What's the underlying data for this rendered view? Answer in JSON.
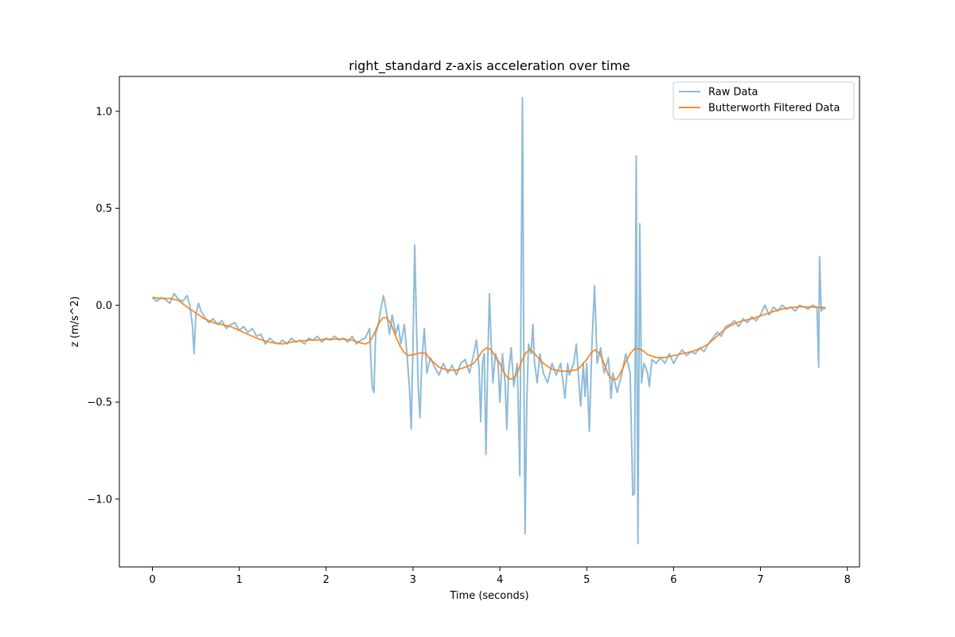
{
  "chart_data": {
    "type": "line",
    "title": "right_standard z-axis acceleration over time",
    "xlabel": "Time (seconds)",
    "ylabel": "z (m/s^2)",
    "xlim": [
      -0.38,
      8.14
    ],
    "ylim": [
      -1.35,
      1.18
    ],
    "xticks": [
      0,
      1,
      2,
      3,
      4,
      5,
      6,
      7,
      8
    ],
    "xtick_labels": [
      "0",
      "1",
      "2",
      "3",
      "4",
      "5",
      "6",
      "7",
      "8"
    ],
    "yticks": [
      -1.0,
      -0.5,
      0.0,
      0.5,
      1.0
    ],
    "ytick_labels": [
      "−1.0",
      "−0.5",
      "0.0",
      "0.5",
      "1.0"
    ],
    "grid": false,
    "legend_position": "top-right",
    "series": [
      {
        "name": "Raw Data",
        "color": "#1f77b4",
        "opacity": 0.5,
        "points": [
          [
            0.0,
            0.04
          ],
          [
            0.05,
            0.02
          ],
          [
            0.1,
            0.04
          ],
          [
            0.15,
            0.03
          ],
          [
            0.2,
            0.01
          ],
          [
            0.25,
            0.06
          ],
          [
            0.3,
            0.03
          ],
          [
            0.35,
            0.02
          ],
          [
            0.4,
            0.05
          ],
          [
            0.43,
            0.0
          ],
          [
            0.46,
            -0.1
          ],
          [
            0.48,
            -0.25
          ],
          [
            0.5,
            -0.05
          ],
          [
            0.53,
            0.01
          ],
          [
            0.56,
            -0.03
          ],
          [
            0.6,
            -0.06
          ],
          [
            0.65,
            -0.09
          ],
          [
            0.7,
            -0.07
          ],
          [
            0.75,
            -0.1
          ],
          [
            0.8,
            -0.08
          ],
          [
            0.85,
            -0.12
          ],
          [
            0.9,
            -0.1
          ],
          [
            0.95,
            -0.09
          ],
          [
            1.0,
            -0.13
          ],
          [
            1.05,
            -0.11
          ],
          [
            1.1,
            -0.14
          ],
          [
            1.15,
            -0.12
          ],
          [
            1.2,
            -0.16
          ],
          [
            1.25,
            -0.15
          ],
          [
            1.3,
            -0.2
          ],
          [
            1.35,
            -0.17
          ],
          [
            1.4,
            -0.19
          ],
          [
            1.45,
            -0.2
          ],
          [
            1.5,
            -0.18
          ],
          [
            1.55,
            -0.2
          ],
          [
            1.6,
            -0.17
          ],
          [
            1.65,
            -0.19
          ],
          [
            1.7,
            -0.18
          ],
          [
            1.75,
            -0.2
          ],
          [
            1.8,
            -0.17
          ],
          [
            1.85,
            -0.18
          ],
          [
            1.9,
            -0.16
          ],
          [
            1.95,
            -0.19
          ],
          [
            2.0,
            -0.17
          ],
          [
            2.05,
            -0.18
          ],
          [
            2.1,
            -0.16
          ],
          [
            2.15,
            -0.18
          ],
          [
            2.2,
            -0.17
          ],
          [
            2.25,
            -0.19
          ],
          [
            2.3,
            -0.16
          ],
          [
            2.35,
            -0.2
          ],
          [
            2.4,
            -0.18
          ],
          [
            2.45,
            -0.17
          ],
          [
            2.5,
            -0.12
          ],
          [
            2.53,
            -0.42
          ],
          [
            2.55,
            -0.45
          ],
          [
            2.57,
            -0.15
          ],
          [
            2.6,
            -0.1
          ],
          [
            2.63,
            -0.02
          ],
          [
            2.66,
            0.05
          ],
          [
            2.7,
            -0.05
          ],
          [
            2.73,
            -0.15
          ],
          [
            2.76,
            -0.05
          ],
          [
            2.8,
            -0.15
          ],
          [
            2.83,
            -0.1
          ],
          [
            2.86,
            -0.2
          ],
          [
            2.9,
            -0.1
          ],
          [
            2.93,
            -0.25
          ],
          [
            2.96,
            -0.43
          ],
          [
            2.98,
            -0.64
          ],
          [
            3.0,
            -0.2
          ],
          [
            3.02,
            0.31
          ],
          [
            3.04,
            -0.1
          ],
          [
            3.06,
            -0.42
          ],
          [
            3.08,
            -0.58
          ],
          [
            3.1,
            -0.3
          ],
          [
            3.13,
            -0.12
          ],
          [
            3.16,
            -0.35
          ],
          [
            3.2,
            -0.27
          ],
          [
            3.25,
            -0.32
          ],
          [
            3.3,
            -0.36
          ],
          [
            3.35,
            -0.3
          ],
          [
            3.4,
            -0.35
          ],
          [
            3.45,
            -0.31
          ],
          [
            3.5,
            -0.36
          ],
          [
            3.55,
            -0.3
          ],
          [
            3.6,
            -0.28
          ],
          [
            3.65,
            -0.35
          ],
          [
            3.7,
            -0.25
          ],
          [
            3.73,
            -0.18
          ],
          [
            3.76,
            -0.32
          ],
          [
            3.78,
            -0.6
          ],
          [
            3.8,
            -0.3
          ],
          [
            3.82,
            -0.25
          ],
          [
            3.84,
            -0.77
          ],
          [
            3.86,
            -0.3
          ],
          [
            3.88,
            0.06
          ],
          [
            3.9,
            -0.2
          ],
          [
            3.92,
            -0.4
          ],
          [
            3.95,
            -0.25
          ],
          [
            3.98,
            -0.3
          ],
          [
            4.0,
            -0.5
          ],
          [
            4.03,
            -0.25
          ],
          [
            4.06,
            -0.4
          ],
          [
            4.08,
            -0.64
          ],
          [
            4.1,
            -0.35
          ],
          [
            4.13,
            -0.22
          ],
          [
            4.16,
            -0.42
          ],
          [
            4.2,
            -0.3
          ],
          [
            4.23,
            -0.88
          ],
          [
            4.26,
            1.07
          ],
          [
            4.28,
            -0.6
          ],
          [
            4.29,
            -1.18
          ],
          [
            4.31,
            -0.5
          ],
          [
            4.33,
            -0.2
          ],
          [
            4.36,
            -0.25
          ],
          [
            4.38,
            -0.1
          ],
          [
            4.4,
            -0.3
          ],
          [
            4.43,
            -0.4
          ],
          [
            4.46,
            -0.25
          ],
          [
            4.5,
            -0.35
          ],
          [
            4.55,
            -0.4
          ],
          [
            4.6,
            -0.3
          ],
          [
            4.65,
            -0.36
          ],
          [
            4.7,
            -0.3
          ],
          [
            4.75,
            -0.48
          ],
          [
            4.78,
            -0.3
          ],
          [
            4.8,
            -0.36
          ],
          [
            4.85,
            -0.3
          ],
          [
            4.88,
            -0.2
          ],
          [
            4.91,
            -0.4
          ],
          [
            4.93,
            -0.52
          ],
          [
            4.96,
            -0.3
          ],
          [
            4.98,
            -0.47
          ],
          [
            5.0,
            -0.3
          ],
          [
            5.03,
            -0.65
          ],
          [
            5.06,
            -0.2
          ],
          [
            5.09,
            0.1
          ],
          [
            5.12,
            -0.3
          ],
          [
            5.16,
            -0.22
          ],
          [
            5.2,
            -0.35
          ],
          [
            5.25,
            -0.27
          ],
          [
            5.28,
            -0.48
          ],
          [
            5.3,
            -0.35
          ],
          [
            5.35,
            -0.45
          ],
          [
            5.4,
            -0.36
          ],
          [
            5.45,
            -0.25
          ],
          [
            5.5,
            -0.35
          ],
          [
            5.53,
            -0.98
          ],
          [
            5.55,
            -0.97
          ],
          [
            5.57,
            0.77
          ],
          [
            5.58,
            -0.4
          ],
          [
            5.59,
            -1.23
          ],
          [
            5.61,
            0.42
          ],
          [
            5.63,
            -0.4
          ],
          [
            5.66,
            -0.3
          ],
          [
            5.7,
            -0.35
          ],
          [
            5.72,
            -0.42
          ],
          [
            5.75,
            -0.28
          ],
          [
            5.8,
            -0.3
          ],
          [
            5.85,
            -0.27
          ],
          [
            5.9,
            -0.3
          ],
          [
            5.95,
            -0.25
          ],
          [
            6.0,
            -0.3
          ],
          [
            6.05,
            -0.26
          ],
          [
            6.1,
            -0.23
          ],
          [
            6.15,
            -0.26
          ],
          [
            6.2,
            -0.24
          ],
          [
            6.25,
            -0.25
          ],
          [
            6.3,
            -0.22
          ],
          [
            6.35,
            -0.24
          ],
          [
            6.4,
            -0.2
          ],
          [
            6.45,
            -0.17
          ],
          [
            6.5,
            -0.14
          ],
          [
            6.55,
            -0.16
          ],
          [
            6.6,
            -0.11
          ],
          [
            6.65,
            -0.1
          ],
          [
            6.7,
            -0.08
          ],
          [
            6.75,
            -0.11
          ],
          [
            6.8,
            -0.07
          ],
          [
            6.85,
            -0.09
          ],
          [
            6.9,
            -0.06
          ],
          [
            6.95,
            -0.08
          ],
          [
            7.0,
            -0.05
          ],
          [
            7.05,
            0.0
          ],
          [
            7.1,
            -0.05
          ],
          [
            7.15,
            -0.01
          ],
          [
            7.2,
            -0.03
          ],
          [
            7.25,
            0.0
          ],
          [
            7.3,
            -0.02
          ],
          [
            7.35,
            -0.01
          ],
          [
            7.4,
            -0.03
          ],
          [
            7.45,
            0.0
          ],
          [
            7.5,
            -0.01
          ],
          [
            7.55,
            -0.02
          ],
          [
            7.6,
            0.0
          ],
          [
            7.65,
            -0.01
          ],
          [
            7.67,
            -0.32
          ],
          [
            7.68,
            0.25
          ],
          [
            7.7,
            -0.03
          ],
          [
            7.73,
            -0.01
          ],
          [
            7.75,
            -0.02
          ]
        ]
      },
      {
        "name": "Butterworth Filtered Data",
        "color": "#ff7f0e",
        "opacity": 0.9,
        "points": [
          [
            0.0,
            0.04
          ],
          [
            0.1,
            0.035
          ],
          [
            0.2,
            0.035
          ],
          [
            0.3,
            0.025
          ],
          [
            0.4,
            -0.01
          ],
          [
            0.5,
            -0.04
          ],
          [
            0.6,
            -0.07
          ],
          [
            0.7,
            -0.09
          ],
          [
            0.8,
            -0.1
          ],
          [
            0.9,
            -0.11
          ],
          [
            1.0,
            -0.13
          ],
          [
            1.1,
            -0.15
          ],
          [
            1.2,
            -0.17
          ],
          [
            1.3,
            -0.185
          ],
          [
            1.4,
            -0.195
          ],
          [
            1.5,
            -0.2
          ],
          [
            1.6,
            -0.19
          ],
          [
            1.7,
            -0.185
          ],
          [
            1.8,
            -0.18
          ],
          [
            1.9,
            -0.18
          ],
          [
            2.0,
            -0.175
          ],
          [
            2.1,
            -0.175
          ],
          [
            2.2,
            -0.175
          ],
          [
            2.3,
            -0.18
          ],
          [
            2.4,
            -0.195
          ],
          [
            2.45,
            -0.2
          ],
          [
            2.5,
            -0.19
          ],
          [
            2.55,
            -0.15
          ],
          [
            2.6,
            -0.1
          ],
          [
            2.65,
            -0.065
          ],
          [
            2.7,
            -0.065
          ],
          [
            2.75,
            -0.1
          ],
          [
            2.8,
            -0.16
          ],
          [
            2.85,
            -0.21
          ],
          [
            2.9,
            -0.245
          ],
          [
            2.95,
            -0.26
          ],
          [
            3.0,
            -0.255
          ],
          [
            3.1,
            -0.245
          ],
          [
            3.15,
            -0.25
          ],
          [
            3.2,
            -0.28
          ],
          [
            3.3,
            -0.32
          ],
          [
            3.4,
            -0.335
          ],
          [
            3.5,
            -0.335
          ],
          [
            3.6,
            -0.32
          ],
          [
            3.7,
            -0.3
          ],
          [
            3.75,
            -0.27
          ],
          [
            3.8,
            -0.235
          ],
          [
            3.85,
            -0.22
          ],
          [
            3.9,
            -0.23
          ],
          [
            4.0,
            -0.3
          ],
          [
            4.05,
            -0.35
          ],
          [
            4.1,
            -0.38
          ],
          [
            4.15,
            -0.38
          ],
          [
            4.2,
            -0.35
          ],
          [
            4.25,
            -0.29
          ],
          [
            4.3,
            -0.245
          ],
          [
            4.35,
            -0.23
          ],
          [
            4.4,
            -0.25
          ],
          [
            4.5,
            -0.3
          ],
          [
            4.6,
            -0.33
          ],
          [
            4.7,
            -0.34
          ],
          [
            4.8,
            -0.34
          ],
          [
            4.9,
            -0.33
          ],
          [
            5.0,
            -0.28
          ],
          [
            5.05,
            -0.245
          ],
          [
            5.1,
            -0.23
          ],
          [
            5.15,
            -0.25
          ],
          [
            5.2,
            -0.3
          ],
          [
            5.25,
            -0.36
          ],
          [
            5.3,
            -0.385
          ],
          [
            5.35,
            -0.38
          ],
          [
            5.4,
            -0.34
          ],
          [
            5.45,
            -0.29
          ],
          [
            5.5,
            -0.25
          ],
          [
            5.55,
            -0.225
          ],
          [
            5.6,
            -0.225
          ],
          [
            5.65,
            -0.235
          ],
          [
            5.7,
            -0.255
          ],
          [
            5.8,
            -0.27
          ],
          [
            5.9,
            -0.27
          ],
          [
            6.0,
            -0.26
          ],
          [
            6.1,
            -0.25
          ],
          [
            6.2,
            -0.24
          ],
          [
            6.3,
            -0.225
          ],
          [
            6.4,
            -0.2
          ],
          [
            6.5,
            -0.16
          ],
          [
            6.6,
            -0.12
          ],
          [
            6.7,
            -0.095
          ],
          [
            6.8,
            -0.08
          ],
          [
            6.9,
            -0.07
          ],
          [
            7.0,
            -0.055
          ],
          [
            7.1,
            -0.04
          ],
          [
            7.2,
            -0.025
          ],
          [
            7.3,
            -0.015
          ],
          [
            7.4,
            -0.01
          ],
          [
            7.5,
            -0.008
          ],
          [
            7.6,
            -0.01
          ],
          [
            7.7,
            -0.012
          ],
          [
            7.75,
            -0.012
          ]
        ]
      }
    ]
  }
}
